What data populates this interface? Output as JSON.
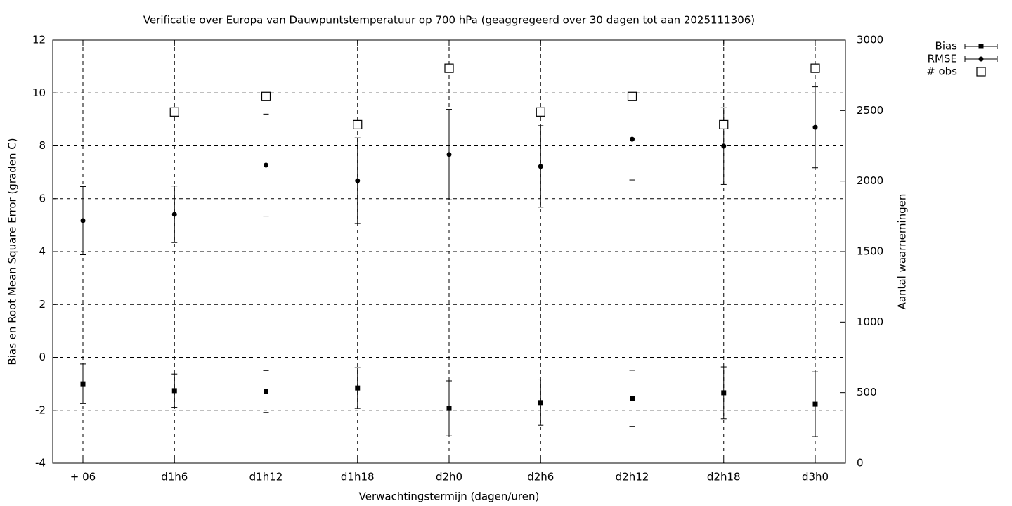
{
  "chart_data": {
    "type": "errorbar",
    "title": "Verificatie over Europa van Dauwpuntstemperatuur op 700 hPa (geaggregeerd over 30 dagen tot aan 2025111306)",
    "x_label": "Verwachtingstermijn (dagen/uren)",
    "y_label": "Bias en Root Mean Square Error (graden C)",
    "y2_label": "Aantal waarnemingen",
    "categories": [
      "+ 06",
      "d1h6",
      "d1h12",
      "d1h18",
      "d2h0",
      "d2h6",
      "d2h12",
      "d2h18",
      "d3h0"
    ],
    "series": [
      {
        "name": "Bias",
        "color": "#000000",
        "marker": "square",
        "values": [
          -1.0,
          -1.26,
          -1.29,
          -1.16,
          -1.93,
          -1.71,
          -1.55,
          -1.34,
          -1.77
        ],
        "errors": [
          0.75,
          0.63,
          0.79,
          0.77,
          1.04,
          0.86,
          1.06,
          0.98,
          1.22
        ]
      },
      {
        "name": "RMSE",
        "color": "#000000",
        "marker": "circle",
        "values": [
          5.17,
          5.41,
          7.27,
          6.68,
          7.67,
          7.22,
          8.25,
          7.99,
          8.7
        ],
        "errors": [
          1.29,
          1.07,
          1.93,
          1.62,
          1.71,
          1.54,
          1.54,
          1.45,
          1.53
        ]
      },
      {
        "name": "# obs",
        "color": "#000000",
        "marker": "open-square",
        "axis": "y2",
        "values": [
          null,
          2490,
          2600,
          2400,
          2800,
          2490,
          2600,
          2400,
          2800
        ]
      }
    ],
    "ylim": [
      -4,
      12
    ],
    "yticks": [
      -4,
      -2,
      0,
      2,
      4,
      6,
      8,
      10,
      12
    ],
    "y2lim": [
      0,
      3000
    ],
    "y2ticks": [
      0,
      500,
      1000,
      1500,
      2000,
      2500,
      3000
    ],
    "grid": true,
    "legend": "top-right"
  }
}
